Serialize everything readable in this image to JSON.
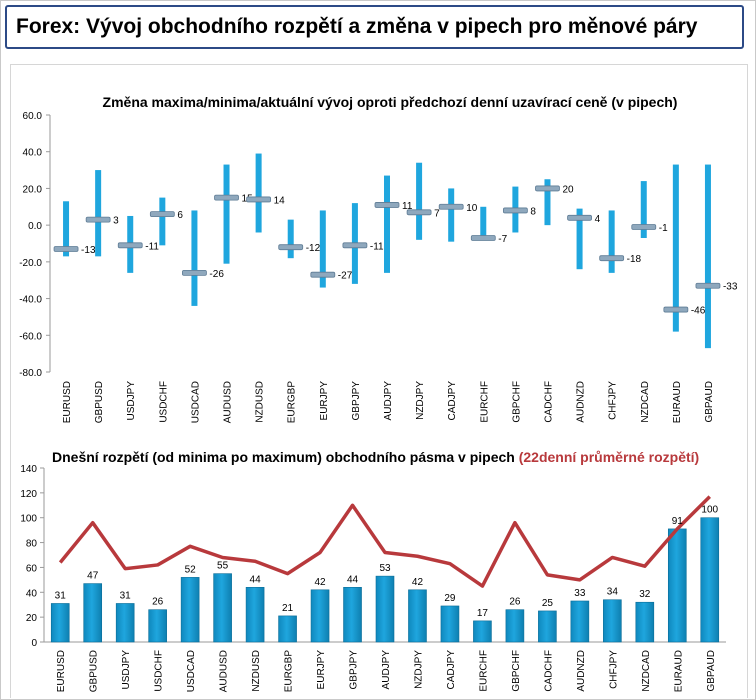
{
  "page": {
    "title": "Forex: Vývoj obchodního rozpětí a změna v pipech pro měnové páry"
  },
  "colors": {
    "bar_blue": "#1fa6de",
    "line_red": "#b8393c",
    "title_border": "#2c4a86",
    "marker_grey": "#8fa8bd"
  },
  "chart_data": [
    {
      "type": "bar",
      "subtype": "range-with-marker",
      "title": "Změna maxima/minima/aktuální vývoj oproti předchozí denní uzavírací ceně (v pipech)",
      "categories": [
        "EURUSD",
        "GBPUSD",
        "USDJPY",
        "USDCHF",
        "USDCAD",
        "AUDUSD",
        "NZDUSD",
        "EURGBP",
        "EURJPY",
        "GBPJPY",
        "AUDJPY",
        "NZDJPY",
        "CADJPY",
        "EURCHF",
        "GBPCHF",
        "CADCHF",
        "AUDNZD",
        "CHFJPY",
        "NZDCAD",
        "EURAUD",
        "GBPAUD"
      ],
      "series": [
        {
          "key": "high",
          "values": [
            13,
            30,
            5,
            15,
            8,
            33,
            39,
            3,
            8,
            12,
            27,
            34,
            20,
            10,
            21,
            25,
            9,
            8,
            24,
            33,
            33
          ]
        },
        {
          "key": "low",
          "values": [
            -17,
            -17,
            -26,
            -11,
            -44,
            -21,
            -4,
            -18,
            -34,
            -32,
            -26,
            -8,
            -9,
            -8,
            -4,
            0,
            -24,
            -26,
            -7,
            -58,
            -67
          ]
        },
        {
          "key": "current",
          "values": [
            -13,
            3,
            -11,
            6,
            -26,
            15,
            14,
            -12,
            -27,
            -11,
            11,
            7,
            10,
            -7,
            8,
            20,
            4,
            -18,
            -1,
            -46,
            -33
          ]
        }
      ],
      "data_labels": [
        "-13",
        "3",
        "-11",
        "6",
        "-26",
        "15",
        "14",
        "-12",
        "-27",
        "-11",
        "11",
        "7",
        "10",
        "-7",
        "8",
        "20",
        "4",
        "-18",
        "-1",
        "-46",
        "-33"
      ],
      "ylim": [
        -80,
        60
      ],
      "yticks": [
        60,
        40,
        20,
        0,
        -20,
        -40,
        -60,
        -80
      ],
      "ytick_labels": [
        "60.0",
        "40.0",
        "20.0",
        "0.0",
        "-20.0",
        "-40.0",
        "-60.0",
        "-80.0"
      ],
      "grid": false,
      "legend": "none"
    },
    {
      "type": "bar",
      "subtype": "bar-with-line",
      "title": "Dnešní rozpětí (od minima po maximum) obchodního pásma v pipech",
      "title_highlight": "(22denní průměrné rozpětí)",
      "categories": [
        "EURUSD",
        "GBPUSD",
        "USDJPY",
        "USDCHF",
        "USDCAD",
        "AUDUSD",
        "NZDUSD",
        "EURGBP",
        "EURJPY",
        "GBPJPY",
        "AUDJPY",
        "NZDJPY",
        "CADJPY",
        "EURCHF",
        "GBPCHF",
        "CADCHF",
        "AUDNZD",
        "CHFJPY",
        "NZDCAD",
        "EURAUD",
        "GBPAUD"
      ],
      "series": [
        {
          "key": "today_range",
          "type": "bar",
          "values": [
            31,
            47,
            31,
            26,
            52,
            55,
            44,
            21,
            42,
            44,
            53,
            42,
            29,
            17,
            26,
            25,
            33,
            34,
            32,
            91,
            100
          ]
        },
        {
          "key": "avg_22d",
          "type": "line",
          "values": [
            64,
            96,
            59,
            62,
            77,
            68,
            65,
            55,
            72,
            110,
            72,
            69,
            63,
            45,
            96,
            54,
            50,
            68,
            61,
            91,
            117
          ]
        }
      ],
      "data_labels": [
        "31",
        "47",
        "31",
        "26",
        "52",
        "55",
        "44",
        "21",
        "42",
        "44",
        "53",
        "42",
        "29",
        "17",
        "26",
        "25",
        "33",
        "34",
        "32",
        "91",
        "100"
      ],
      "ylim": [
        0,
        140
      ],
      "yticks": [
        0,
        20,
        40,
        60,
        80,
        100,
        120,
        140
      ],
      "ytick_labels": [
        "0",
        "20",
        "40",
        "60",
        "80",
        "100",
        "120",
        "140"
      ],
      "grid": false,
      "legend": "none"
    }
  ]
}
